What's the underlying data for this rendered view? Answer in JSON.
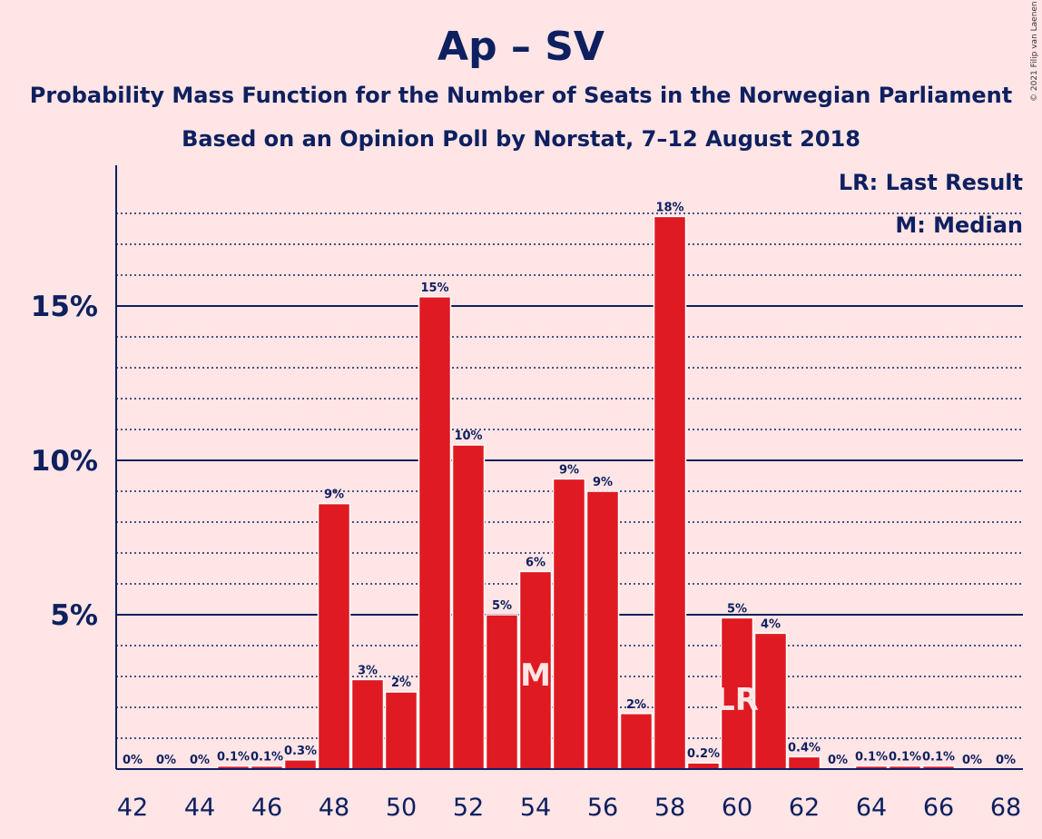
{
  "chart_data": {
    "type": "bar",
    "title": "Ap – SV",
    "subtitle": "Probability Mass Function for the Number of Seats in the Norwegian Parliament",
    "subtitle2": "Based on an Opinion Poll by Norstat, 7–12 August 2018",
    "credit": "© 2021 Filip van Laenen",
    "legend": [
      "LR: Last Result",
      "M: Median"
    ],
    "legend_position": "top-right",
    "x": [
      42,
      43,
      44,
      45,
      46,
      47,
      48,
      49,
      50,
      51,
      52,
      53,
      54,
      55,
      56,
      57,
      58,
      59,
      60,
      61,
      62,
      63,
      64,
      65,
      66,
      67,
      68
    ],
    "x_ticks": [
      "42",
      "44",
      "46",
      "48",
      "50",
      "52",
      "54",
      "56",
      "58",
      "60",
      "62",
      "64",
      "66",
      "68"
    ],
    "values": [
      0,
      0,
      0,
      0.1,
      0.1,
      0.3,
      8.6,
      2.9,
      2.5,
      15.3,
      10.5,
      5.0,
      6.4,
      9.4,
      9.0,
      1.8,
      17.9,
      0.2,
      4.9,
      4.4,
      0.4,
      0,
      0.1,
      0.1,
      0.1,
      0,
      0
    ],
    "labels": [
      "0%",
      "0%",
      "0%",
      "0.1%",
      "0.1%",
      "0.3%",
      "9%",
      "3%",
      "2%",
      "15%",
      "10%",
      "5%",
      "6%",
      "9%",
      "9%",
      "2%",
      "18%",
      "0.2%",
      "5%",
      "4%",
      "0.4%",
      "0%",
      "0.1%",
      "0.1%",
      "0.1%",
      "0%",
      "0%"
    ],
    "y_ticks": [
      {
        "value": 5,
        "label": "5%"
      },
      {
        "value": 10,
        "label": "10%"
      },
      {
        "value": 15,
        "label": "15%"
      }
    ],
    "ylim": [
      0,
      19.5
    ],
    "median": {
      "x": 54,
      "label": "M"
    },
    "last_result": {
      "x": 60,
      "label": "LR"
    },
    "grid": true,
    "colors": {
      "background": "#FFE5E5",
      "bar": "#E01A22",
      "text": "#0E2060",
      "marker": "#FFE5E5"
    }
  }
}
